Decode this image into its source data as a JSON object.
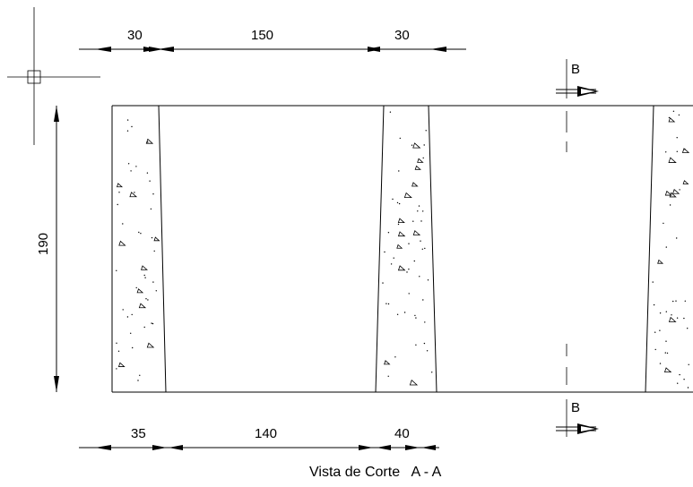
{
  "drawing": {
    "top_dimensions": [
      "30",
      "150",
      "30"
    ],
    "bottom_dimensions": [
      "35",
      "140",
      "40"
    ],
    "height_dimension": "190",
    "section_marker_top": "B",
    "section_marker_bottom": "B",
    "title": "Vista de Corte   A - A"
  },
  "colors": {
    "line": "#000000",
    "background": "#ffffff"
  }
}
